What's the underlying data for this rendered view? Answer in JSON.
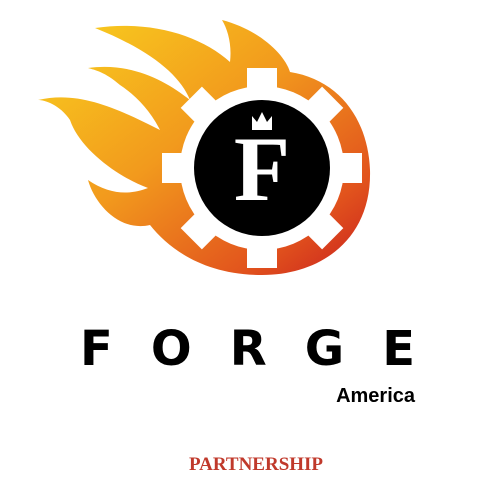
{
  "logo": {
    "emblem_letter": "F",
    "name": "FORGE",
    "region": "America"
  },
  "tagline": "PARTNERSHIP"
}
